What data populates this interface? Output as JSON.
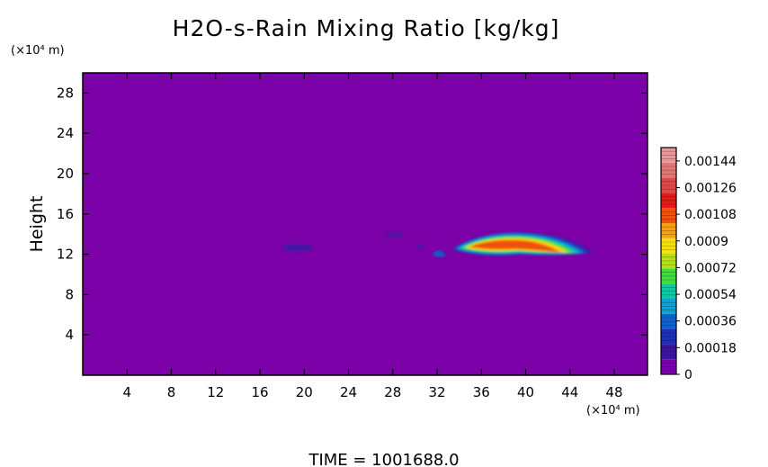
{
  "chart_data": {
    "type": "heatmap",
    "title": "H2O-s-Rain Mixing Ratio [kg/kg]",
    "ylabel": "Height",
    "xlabel": "",
    "x_unit_label": "(×10⁴ m)",
    "y_unit_label": "(×10⁴ m)",
    "xlim": [
      0,
      51
    ],
    "ylim": [
      0,
      30
    ],
    "x_ticks": [
      4,
      8,
      12,
      16,
      20,
      24,
      28,
      32,
      36,
      40,
      44,
      48
    ],
    "y_ticks": [
      4,
      8,
      12,
      16,
      20,
      24,
      28
    ],
    "background_value": 0,
    "colorbar": {
      "min": 0,
      "max": 0.00153,
      "labels": [
        "0",
        "0.00018",
        "0.00036",
        "0.00054",
        "0.00072",
        "0.0009",
        "0.00108",
        "0.00126",
        "0.00144"
      ],
      "label_values": [
        0,
        0.00018,
        0.00036,
        0.00054,
        0.00072,
        0.0009,
        0.00108,
        0.00126,
        0.00144
      ],
      "colors": [
        "#7c00a8",
        "#3c14a4",
        "#1e2fb8",
        "#1060d0",
        "#0aa2d8",
        "#10c8a0",
        "#40dc40",
        "#b8e018",
        "#f8e010",
        "#f8a010",
        "#f05010",
        "#e81818",
        "#e04848",
        "#e07878",
        "#e89898"
      ]
    },
    "features": [
      {
        "x_range": [
          17.5,
          21.5
        ],
        "y_range": [
          11.7,
          13.8
        ],
        "peak_value": 0.00018
      },
      {
        "x_range": [
          27.0,
          29.5
        ],
        "y_range": [
          13.4,
          14.6
        ],
        "peak_value": 0.00018
      },
      {
        "x_range": [
          30.0,
          31.0
        ],
        "y_range": [
          12.3,
          13.5
        ],
        "peak_value": 0.00018
      },
      {
        "x_range": [
          31.5,
          33.0
        ],
        "y_range": [
          11.3,
          12.8
        ],
        "peak_value": 0.00036
      },
      {
        "x_range": [
          33.0,
          46.5
        ],
        "y_range": [
          10.8,
          15.0
        ],
        "peak_value": 0.00108
      }
    ]
  },
  "footer": {
    "time_text": "TIME =  1001688.0"
  }
}
